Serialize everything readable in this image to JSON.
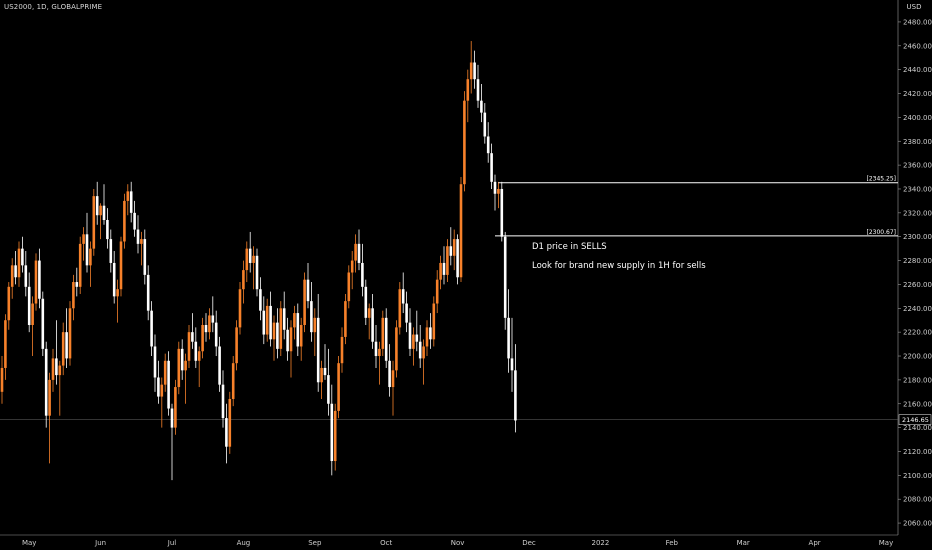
{
  "header": {
    "symbol": "US2000, 1D, GLOBALPRIME",
    "currency": "USD"
  },
  "annotations": {
    "line1": "D1 price in SELLS",
    "line2": "Look for brand new supply in 1H for sells"
  },
  "colors": {
    "up": "#f7812a",
    "down": "#ffffff",
    "background": "#000000",
    "axis": "#9a9a9a"
  },
  "chart_data": {
    "type": "candlestick",
    "title": "",
    "xlabel": "",
    "ylabel": "",
    "ylim": [
      2050,
      2490
    ],
    "yticks": [
      2060,
      2080,
      2100,
      2120,
      2140,
      2160,
      2180,
      2200,
      2220,
      2240,
      2260,
      2280,
      2300,
      2320,
      2340,
      2360,
      2380,
      2400,
      2420,
      2440,
      2460,
      2480
    ],
    "ytick_labels": [
      "2060.00",
      "2080.00",
      "2100.00",
      "2120.00",
      "2140.00",
      "2160.00",
      "2180.00",
      "2200.00",
      "2220.00",
      "2240.00",
      "2260.00",
      "2280.00",
      "2300.00",
      "2320.00",
      "2340.00",
      "2360.00",
      "2380.00",
      "2400.00",
      "2420.00",
      "2440.00",
      "2460.00",
      "2480.00"
    ],
    "xticks": [
      {
        "label": "May",
        "index": 8
      },
      {
        "label": "Jun",
        "index": 29
      },
      {
        "label": "Jul",
        "index": 50
      },
      {
        "label": "Aug",
        "index": 71
      },
      {
        "label": "Sep",
        "index": 92
      },
      {
        "label": "Oct",
        "index": 113
      },
      {
        "label": "Nov",
        "index": 134
      },
      {
        "label": "Dec",
        "index": 155
      },
      {
        "label": "2022",
        "index": 176
      },
      {
        "label": "Feb",
        "index": 197
      },
      {
        "label": "Mar",
        "index": 218
      },
      {
        "label": "Apr",
        "index": 239
      },
      {
        "label": "May",
        "index": 260
      }
    ],
    "levels": [
      {
        "value": 2345.25,
        "label": "[2345.25]",
        "from_index": 146
      },
      {
        "value": 2300.67,
        "label": "[2300.67]",
        "from_index": 145
      }
    ],
    "last_price": {
      "value": 2146.65,
      "label": "2146.65"
    },
    "ohlc": [
      {
        "o": 2170,
        "h": 2200,
        "l": 2160,
        "c": 2190
      },
      {
        "o": 2190,
        "h": 2235,
        "l": 2180,
        "c": 2230
      },
      {
        "o": 2230,
        "h": 2262,
        "l": 2222,
        "c": 2258
      },
      {
        "o": 2258,
        "h": 2282,
        "l": 2248,
        "c": 2276
      },
      {
        "o": 2276,
        "h": 2288,
        "l": 2260,
        "c": 2266
      },
      {
        "o": 2266,
        "h": 2296,
        "l": 2258,
        "c": 2290
      },
      {
        "o": 2290,
        "h": 2300,
        "l": 2270,
        "c": 2276
      },
      {
        "o": 2276,
        "h": 2288,
        "l": 2250,
        "c": 2258
      },
      {
        "o": 2258,
        "h": 2270,
        "l": 2220,
        "c": 2226
      },
      {
        "o": 2226,
        "h": 2250,
        "l": 2200,
        "c": 2244
      },
      {
        "o": 2244,
        "h": 2286,
        "l": 2238,
        "c": 2280
      },
      {
        "o": 2280,
        "h": 2290,
        "l": 2240,
        "c": 2248
      },
      {
        "o": 2248,
        "h": 2254,
        "l": 2200,
        "c": 2206
      },
      {
        "o": 2206,
        "h": 2212,
        "l": 2140,
        "c": 2150
      },
      {
        "o": 2150,
        "h": 2186,
        "l": 2110,
        "c": 2180
      },
      {
        "o": 2180,
        "h": 2206,
        "l": 2170,
        "c": 2198
      },
      {
        "o": 2198,
        "h": 2230,
        "l": 2176,
        "c": 2184
      },
      {
        "o": 2184,
        "h": 2196,
        "l": 2150,
        "c": 2192
      },
      {
        "o": 2192,
        "h": 2228,
        "l": 2184,
        "c": 2220
      },
      {
        "o": 2220,
        "h": 2240,
        "l": 2190,
        "c": 2198
      },
      {
        "o": 2198,
        "h": 2246,
        "l": 2192,
        "c": 2240
      },
      {
        "o": 2240,
        "h": 2268,
        "l": 2230,
        "c": 2262
      },
      {
        "o": 2262,
        "h": 2274,
        "l": 2250,
        "c": 2258
      },
      {
        "o": 2258,
        "h": 2300,
        "l": 2252,
        "c": 2294
      },
      {
        "o": 2294,
        "h": 2308,
        "l": 2280,
        "c": 2302
      },
      {
        "o": 2302,
        "h": 2320,
        "l": 2270,
        "c": 2276
      },
      {
        "o": 2276,
        "h": 2296,
        "l": 2258,
        "c": 2290
      },
      {
        "o": 2290,
        "h": 2340,
        "l": 2284,
        "c": 2334
      },
      {
        "o": 2334,
        "h": 2346,
        "l": 2310,
        "c": 2318
      },
      {
        "o": 2318,
        "h": 2328,
        "l": 2298,
        "c": 2326
      },
      {
        "o": 2326,
        "h": 2344,
        "l": 2310,
        "c": 2314
      },
      {
        "o": 2314,
        "h": 2324,
        "l": 2290,
        "c": 2298
      },
      {
        "o": 2298,
        "h": 2306,
        "l": 2270,
        "c": 2278
      },
      {
        "o": 2278,
        "h": 2288,
        "l": 2244,
        "c": 2250
      },
      {
        "o": 2250,
        "h": 2264,
        "l": 2228,
        "c": 2256
      },
      {
        "o": 2256,
        "h": 2300,
        "l": 2250,
        "c": 2296
      },
      {
        "o": 2296,
        "h": 2336,
        "l": 2290,
        "c": 2330
      },
      {
        "o": 2330,
        "h": 2344,
        "l": 2318,
        "c": 2338
      },
      {
        "o": 2338,
        "h": 2346,
        "l": 2312,
        "c": 2320
      },
      {
        "o": 2320,
        "h": 2330,
        "l": 2300,
        "c": 2306
      },
      {
        "o": 2306,
        "h": 2318,
        "l": 2286,
        "c": 2294
      },
      {
        "o": 2294,
        "h": 2304,
        "l": 2276,
        "c": 2298
      },
      {
        "o": 2298,
        "h": 2306,
        "l": 2260,
        "c": 2268
      },
      {
        "o": 2268,
        "h": 2276,
        "l": 2230,
        "c": 2238
      },
      {
        "o": 2238,
        "h": 2246,
        "l": 2200,
        "c": 2208
      },
      {
        "o": 2208,
        "h": 2218,
        "l": 2170,
        "c": 2182
      },
      {
        "o": 2182,
        "h": 2196,
        "l": 2160,
        "c": 2166
      },
      {
        "o": 2166,
        "h": 2182,
        "l": 2140,
        "c": 2176
      },
      {
        "o": 2176,
        "h": 2202,
        "l": 2170,
        "c": 2196
      },
      {
        "o": 2196,
        "h": 2204,
        "l": 2150,
        "c": 2156
      },
      {
        "o": 2156,
        "h": 2160,
        "l": 2096,
        "c": 2140
      },
      {
        "o": 2140,
        "h": 2180,
        "l": 2134,
        "c": 2174
      },
      {
        "o": 2174,
        "h": 2212,
        "l": 2168,
        "c": 2206
      },
      {
        "o": 2206,
        "h": 2214,
        "l": 2180,
        "c": 2188
      },
      {
        "o": 2188,
        "h": 2202,
        "l": 2160,
        "c": 2196
      },
      {
        "o": 2196,
        "h": 2226,
        "l": 2190,
        "c": 2220
      },
      {
        "o": 2220,
        "h": 2236,
        "l": 2206,
        "c": 2212
      },
      {
        "o": 2212,
        "h": 2224,
        "l": 2190,
        "c": 2196
      },
      {
        "o": 2196,
        "h": 2208,
        "l": 2174,
        "c": 2204
      },
      {
        "o": 2204,
        "h": 2232,
        "l": 2198,
        "c": 2226
      },
      {
        "o": 2226,
        "h": 2236,
        "l": 2212,
        "c": 2220
      },
      {
        "o": 2220,
        "h": 2240,
        "l": 2214,
        "c": 2234
      },
      {
        "o": 2234,
        "h": 2250,
        "l": 2220,
        "c": 2228
      },
      {
        "o": 2228,
        "h": 2238,
        "l": 2200,
        "c": 2208
      },
      {
        "o": 2208,
        "h": 2216,
        "l": 2170,
        "c": 2176
      },
      {
        "o": 2176,
        "h": 2188,
        "l": 2140,
        "c": 2148
      },
      {
        "o": 2148,
        "h": 2160,
        "l": 2110,
        "c": 2124
      },
      {
        "o": 2124,
        "h": 2170,
        "l": 2118,
        "c": 2164
      },
      {
        "o": 2164,
        "h": 2200,
        "l": 2158,
        "c": 2194
      },
      {
        "o": 2194,
        "h": 2230,
        "l": 2188,
        "c": 2224
      },
      {
        "o": 2224,
        "h": 2262,
        "l": 2218,
        "c": 2256
      },
      {
        "o": 2256,
        "h": 2280,
        "l": 2244,
        "c": 2272
      },
      {
        "o": 2272,
        "h": 2296,
        "l": 2262,
        "c": 2290
      },
      {
        "o": 2290,
        "h": 2304,
        "l": 2270,
        "c": 2278
      },
      {
        "o": 2278,
        "h": 2292,
        "l": 2256,
        "c": 2284
      },
      {
        "o": 2284,
        "h": 2290,
        "l": 2250,
        "c": 2256
      },
      {
        "o": 2256,
        "h": 2266,
        "l": 2230,
        "c": 2238
      },
      {
        "o": 2238,
        "h": 2250,
        "l": 2210,
        "c": 2218
      },
      {
        "o": 2218,
        "h": 2248,
        "l": 2212,
        "c": 2242
      },
      {
        "o": 2242,
        "h": 2254,
        "l": 2208,
        "c": 2214
      },
      {
        "o": 2214,
        "h": 2234,
        "l": 2196,
        "c": 2228
      },
      {
        "o": 2228,
        "h": 2240,
        "l": 2198,
        "c": 2206
      },
      {
        "o": 2206,
        "h": 2246,
        "l": 2200,
        "c": 2240
      },
      {
        "o": 2240,
        "h": 2254,
        "l": 2214,
        "c": 2222
      },
      {
        "o": 2222,
        "h": 2232,
        "l": 2196,
        "c": 2204
      },
      {
        "o": 2204,
        "h": 2230,
        "l": 2182,
        "c": 2224
      },
      {
        "o": 2224,
        "h": 2242,
        "l": 2214,
        "c": 2236
      },
      {
        "o": 2236,
        "h": 2244,
        "l": 2200,
        "c": 2208
      },
      {
        "o": 2208,
        "h": 2232,
        "l": 2196,
        "c": 2226
      },
      {
        "o": 2226,
        "h": 2270,
        "l": 2220,
        "c": 2264
      },
      {
        "o": 2264,
        "h": 2278,
        "l": 2240,
        "c": 2246
      },
      {
        "o": 2246,
        "h": 2262,
        "l": 2212,
        "c": 2220
      },
      {
        "o": 2220,
        "h": 2240,
        "l": 2200,
        "c": 2232
      },
      {
        "o": 2232,
        "h": 2252,
        "l": 2170,
        "c": 2178
      },
      {
        "o": 2178,
        "h": 2196,
        "l": 2164,
        "c": 2190
      },
      {
        "o": 2190,
        "h": 2210,
        "l": 2180,
        "c": 2184
      },
      {
        "o": 2184,
        "h": 2206,
        "l": 2150,
        "c": 2160
      },
      {
        "o": 2160,
        "h": 2176,
        "l": 2100,
        "c": 2112
      },
      {
        "o": 2112,
        "h": 2160,
        "l": 2104,
        "c": 2154
      },
      {
        "o": 2154,
        "h": 2200,
        "l": 2148,
        "c": 2194
      },
      {
        "o": 2194,
        "h": 2224,
        "l": 2186,
        "c": 2216
      },
      {
        "o": 2216,
        "h": 2252,
        "l": 2210,
        "c": 2246
      },
      {
        "o": 2246,
        "h": 2276,
        "l": 2240,
        "c": 2270
      },
      {
        "o": 2270,
        "h": 2288,
        "l": 2256,
        "c": 2280
      },
      {
        "o": 2280,
        "h": 2302,
        "l": 2270,
        "c": 2294
      },
      {
        "o": 2294,
        "h": 2306,
        "l": 2272,
        "c": 2278
      },
      {
        "o": 2278,
        "h": 2294,
        "l": 2250,
        "c": 2258
      },
      {
        "o": 2258,
        "h": 2264,
        "l": 2226,
        "c": 2232
      },
      {
        "o": 2232,
        "h": 2244,
        "l": 2214,
        "c": 2240
      },
      {
        "o": 2240,
        "h": 2252,
        "l": 2206,
        "c": 2212
      },
      {
        "o": 2212,
        "h": 2226,
        "l": 2190,
        "c": 2200
      },
      {
        "o": 2200,
        "h": 2212,
        "l": 2176,
        "c": 2206
      },
      {
        "o": 2206,
        "h": 2238,
        "l": 2200,
        "c": 2232
      },
      {
        "o": 2232,
        "h": 2240,
        "l": 2190,
        "c": 2196
      },
      {
        "o": 2196,
        "h": 2210,
        "l": 2166,
        "c": 2174
      },
      {
        "o": 2174,
        "h": 2196,
        "l": 2150,
        "c": 2188
      },
      {
        "o": 2188,
        "h": 2230,
        "l": 2182,
        "c": 2224
      },
      {
        "o": 2224,
        "h": 2262,
        "l": 2218,
        "c": 2256
      },
      {
        "o": 2256,
        "h": 2270,
        "l": 2236,
        "c": 2244
      },
      {
        "o": 2244,
        "h": 2254,
        "l": 2220,
        "c": 2228
      },
      {
        "o": 2228,
        "h": 2240,
        "l": 2200,
        "c": 2206
      },
      {
        "o": 2206,
        "h": 2224,
        "l": 2192,
        "c": 2218
      },
      {
        "o": 2218,
        "h": 2238,
        "l": 2204,
        "c": 2212
      },
      {
        "o": 2212,
        "h": 2226,
        "l": 2190,
        "c": 2198
      },
      {
        "o": 2198,
        "h": 2214,
        "l": 2176,
        "c": 2208
      },
      {
        "o": 2208,
        "h": 2230,
        "l": 2200,
        "c": 2224
      },
      {
        "o": 2224,
        "h": 2236,
        "l": 2206,
        "c": 2214
      },
      {
        "o": 2214,
        "h": 2250,
        "l": 2208,
        "c": 2244
      },
      {
        "o": 2244,
        "h": 2272,
        "l": 2236,
        "c": 2264
      },
      {
        "o": 2264,
        "h": 2284,
        "l": 2256,
        "c": 2278
      },
      {
        "o": 2278,
        "h": 2292,
        "l": 2260,
        "c": 2268
      },
      {
        "o": 2268,
        "h": 2298,
        "l": 2262,
        "c": 2292
      },
      {
        "o": 2292,
        "h": 2308,
        "l": 2276,
        "c": 2284
      },
      {
        "o": 2284,
        "h": 2306,
        "l": 2272,
        "c": 2298
      },
      {
        "o": 2298,
        "h": 2302,
        "l": 2260,
        "c": 2266
      },
      {
        "o": 2266,
        "h": 2350,
        "l": 2262,
        "c": 2344
      },
      {
        "o": 2344,
        "h": 2422,
        "l": 2338,
        "c": 2414
      },
      {
        "o": 2414,
        "h": 2440,
        "l": 2396,
        "c": 2432
      },
      {
        "o": 2432,
        "h": 2464,
        "l": 2420,
        "c": 2446
      },
      {
        "o": 2446,
        "h": 2456,
        "l": 2424,
        "c": 2432
      },
      {
        "o": 2432,
        "h": 2444,
        "l": 2408,
        "c": 2414
      },
      {
        "o": 2414,
        "h": 2428,
        "l": 2396,
        "c": 2404
      },
      {
        "o": 2404,
        "h": 2412,
        "l": 2378,
        "c": 2384
      },
      {
        "o": 2384,
        "h": 2396,
        "l": 2362,
        "c": 2370
      },
      {
        "o": 2370,
        "h": 2378,
        "l": 2340,
        "c": 2346
      },
      {
        "o": 2346,
        "h": 2352,
        "l": 2322,
        "c": 2336
      },
      {
        "o": 2336,
        "h": 2346,
        "l": 2324,
        "c": 2340
      },
      {
        "o": 2340,
        "h": 2346,
        "l": 2296,
        "c": 2300
      },
      {
        "o": 2300,
        "h": 2304,
        "l": 2222,
        "c": 2232
      },
      {
        "o": 2232,
        "h": 2256,
        "l": 2186,
        "c": 2198
      },
      {
        "o": 2198,
        "h": 2232,
        "l": 2170,
        "c": 2188
      },
      {
        "o": 2188,
        "h": 2210,
        "l": 2136,
        "c": 2146
      }
    ]
  }
}
